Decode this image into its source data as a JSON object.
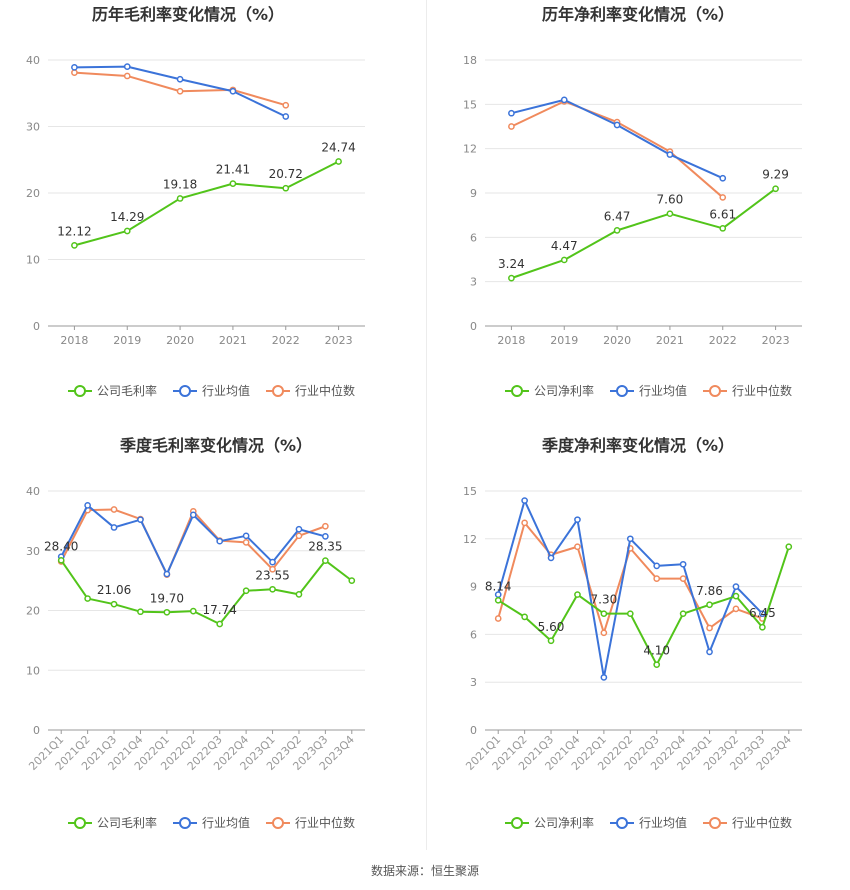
{
  "chart_data": [
    {
      "type": "line",
      "title": "历年毛利率变化情况（%）",
      "categories": [
        "2018",
        "2019",
        "2020",
        "2021",
        "2022",
        "2023"
      ],
      "ylim": [
        0,
        40
      ],
      "yticks": [
        0,
        10,
        20,
        30,
        40
      ],
      "grid": true,
      "legend_position": "bottom",
      "series": [
        {
          "name": "公司毛利率",
          "color": "#52c41a",
          "labels": true,
          "values": [
            12.12,
            14.29,
            19.18,
            21.41,
            20.72,
            24.74
          ],
          "value_labels": [
            "12.12",
            "14.29",
            "19.18",
            "21.41",
            "20.72",
            "24.74"
          ]
        },
        {
          "name": "行业均值",
          "color": "#3b73d9",
          "values": [
            38.9,
            39.0,
            37.1,
            35.3,
            31.5,
            null
          ]
        },
        {
          "name": "行业中位数",
          "color": "#f08a5d",
          "values": [
            38.1,
            37.6,
            35.3,
            35.5,
            33.2,
            null
          ]
        }
      ]
    },
    {
      "type": "line",
      "title": "历年净利率变化情况（%）",
      "categories": [
        "2018",
        "2019",
        "2020",
        "2021",
        "2022",
        "2023"
      ],
      "ylim": [
        0,
        18
      ],
      "yticks": [
        0,
        3,
        6,
        9,
        12,
        15,
        18
      ],
      "grid": true,
      "legend_position": "bottom",
      "series": [
        {
          "name": "公司净利率",
          "color": "#52c41a",
          "labels": true,
          "values": [
            3.24,
            4.47,
            6.47,
            7.6,
            6.61,
            9.29
          ],
          "value_labels": [
            "3.24",
            "4.47",
            "6.47",
            "7.60",
            "6.61",
            "9.29"
          ]
        },
        {
          "name": "行业均值",
          "color": "#3b73d9",
          "values": [
            14.4,
            15.3,
            13.6,
            11.6,
            10.0,
            null
          ]
        },
        {
          "name": "行业中位数",
          "color": "#f08a5d",
          "values": [
            13.5,
            15.2,
            13.8,
            11.8,
            8.7,
            null
          ]
        }
      ]
    },
    {
      "type": "line",
      "title": "季度毛利率变化情况（%）",
      "categories": [
        "2021Q1",
        "2021Q2",
        "2021Q3",
        "2021Q4",
        "2022Q1",
        "2022Q2",
        "2022Q3",
        "2022Q4",
        "2023Q1",
        "2023Q2",
        "2023Q3",
        "2023Q4"
      ],
      "ylim": [
        0,
        40
      ],
      "yticks": [
        0,
        10,
        20,
        30,
        40
      ],
      "grid": true,
      "legend_position": "bottom",
      "series": [
        {
          "name": "公司毛利率",
          "color": "#52c41a",
          "labels": true,
          "values": [
            28.4,
            22.0,
            21.06,
            19.8,
            19.7,
            19.9,
            17.74,
            23.3,
            23.55,
            22.7,
            28.35,
            25.0
          ],
          "value_labels": [
            "28.40",
            null,
            "21.06",
            null,
            "19.70",
            null,
            "17.74",
            null,
            "23.55",
            null,
            "28.35",
            null
          ]
        },
        {
          "name": "行业均值",
          "color": "#3b73d9",
          "values": [
            29.0,
            37.6,
            33.9,
            35.2,
            26.1,
            36.0,
            31.6,
            32.5,
            28.1,
            33.6,
            32.4,
            null
          ]
        },
        {
          "name": "行业中位数",
          "color": "#f08a5d",
          "values": [
            28.2,
            36.8,
            36.9,
            35.3,
            26.0,
            36.6,
            31.7,
            31.4,
            26.9,
            32.5,
            34.1,
            null
          ]
        }
      ]
    },
    {
      "type": "line",
      "title": "季度净利率变化情况（%）",
      "categories": [
        "2021Q1",
        "2021Q2",
        "2021Q3",
        "2021Q4",
        "2022Q1",
        "2022Q2",
        "2022Q3",
        "2022Q4",
        "2023Q1",
        "2023Q2",
        "2023Q3",
        "2023Q4"
      ],
      "ylim": [
        0,
        15
      ],
      "yticks": [
        0,
        3,
        6,
        9,
        12,
        15
      ],
      "grid": true,
      "legend_position": "bottom",
      "series": [
        {
          "name": "公司净利率",
          "color": "#52c41a",
          "labels": true,
          "values": [
            8.14,
            7.1,
            5.6,
            8.5,
            7.3,
            7.3,
            4.1,
            7.3,
            7.86,
            8.4,
            6.45,
            11.5
          ],
          "value_labels": [
            "8.14",
            null,
            "5.60",
            null,
            "7.30",
            null,
            "4.10",
            null,
            "7.86",
            null,
            "6.45",
            null
          ]
        },
        {
          "name": "行业均值",
          "color": "#3b73d9",
          "values": [
            8.5,
            14.4,
            10.8,
            13.2,
            3.3,
            12.0,
            10.3,
            10.4,
            4.9,
            9.0,
            7.3,
            null
          ]
        },
        {
          "name": "行业中位数",
          "color": "#f08a5d",
          "values": [
            7.0,
            13.0,
            11.0,
            11.5,
            6.1,
            11.4,
            9.5,
            9.5,
            6.4,
            7.6,
            7.0,
            null
          ]
        }
      ]
    }
  ],
  "footer": {
    "source": "数据来源：恒生聚源"
  }
}
